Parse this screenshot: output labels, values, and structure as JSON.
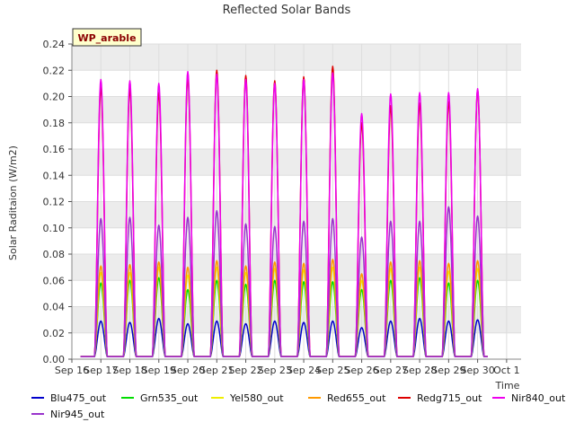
{
  "chart_data": {
    "type": "line",
    "title": "Reflected Solar Bands",
    "xlabel": "Time",
    "ylabel": "Solar Raditaion (W/m2)",
    "station_badge": "WP_arable",
    "ylim": [
      0,
      0.24
    ],
    "yticks": [
      0.0,
      0.02,
      0.04,
      0.06,
      0.08,
      0.1,
      0.12,
      0.14,
      0.16,
      0.18,
      0.2,
      0.22,
      0.24
    ],
    "ytick_labels": [
      "0.00",
      "0.02",
      "0.04",
      "0.06",
      "0.08",
      "0.10",
      "0.12",
      "0.14",
      "0.16",
      "0.18",
      "0.20",
      "0.22",
      "0.24"
    ],
    "xlim": [
      0,
      15.5
    ],
    "xtick_labels": [
      "Sep 16",
      "Sep 17",
      "Sep 18",
      "Sep 19",
      "Sep 20",
      "Sep 21",
      "Sep 22",
      "Sep 23",
      "Sep 24",
      "Sep 25",
      "Sep 26",
      "Sep 27",
      "Sep 28",
      "Sep 29",
      "Sep 30",
      "Oct 1"
    ],
    "peak_days": [
      1,
      2,
      3,
      4,
      5,
      6,
      7,
      8,
      9,
      10,
      11,
      12,
      13,
      14
    ],
    "grid": true,
    "legend_position": "bottom",
    "series": [
      {
        "name": "Blu475_out",
        "color": "#0000cc",
        "peaks": [
          0.029,
          0.028,
          0.031,
          0.027,
          0.029,
          0.027,
          0.029,
          0.028,
          0.029,
          0.024,
          0.029,
          0.031,
          0.029,
          0.03
        ]
      },
      {
        "name": "Grn535_out",
        "color": "#00dd00",
        "peaks": [
          0.058,
          0.06,
          0.062,
          0.053,
          0.06,
          0.057,
          0.06,
          0.059,
          0.059,
          0.053,
          0.06,
          0.062,
          0.058,
          0.06
        ]
      },
      {
        "name": "Yel580_out",
        "color": "#eeee00",
        "peaks": [
          0.066,
          0.066,
          0.07,
          0.064,
          0.07,
          0.066,
          0.069,
          0.068,
          0.07,
          0.06,
          0.069,
          0.07,
          0.067,
          0.069
        ]
      },
      {
        "name": "Red655_out",
        "color": "#ff9900",
        "peaks": [
          0.071,
          0.072,
          0.074,
          0.07,
          0.075,
          0.071,
          0.074,
          0.073,
          0.076,
          0.065,
          0.074,
          0.075,
          0.073,
          0.075
        ]
      },
      {
        "name": "Redg715_out",
        "color": "#dd0000",
        "peaks": [
          0.207,
          0.206,
          0.203,
          0.215,
          0.22,
          0.216,
          0.212,
          0.215,
          0.223,
          0.18,
          0.193,
          0.195,
          0.196,
          0.205
        ]
      },
      {
        "name": "Nir840_out",
        "color": "#ee00ee",
        "peaks": [
          0.213,
          0.212,
          0.21,
          0.219,
          0.217,
          0.213,
          0.21,
          0.213,
          0.218,
          0.187,
          0.202,
          0.203,
          0.203,
          0.206
        ]
      },
      {
        "name": "Nir945_out",
        "color": "#9933cc",
        "peaks": [
          0.107,
          0.108,
          0.102,
          0.108,
          0.113,
          0.103,
          0.101,
          0.105,
          0.107,
          0.093,
          0.105,
          0.105,
          0.116,
          0.109
        ]
      }
    ]
  }
}
